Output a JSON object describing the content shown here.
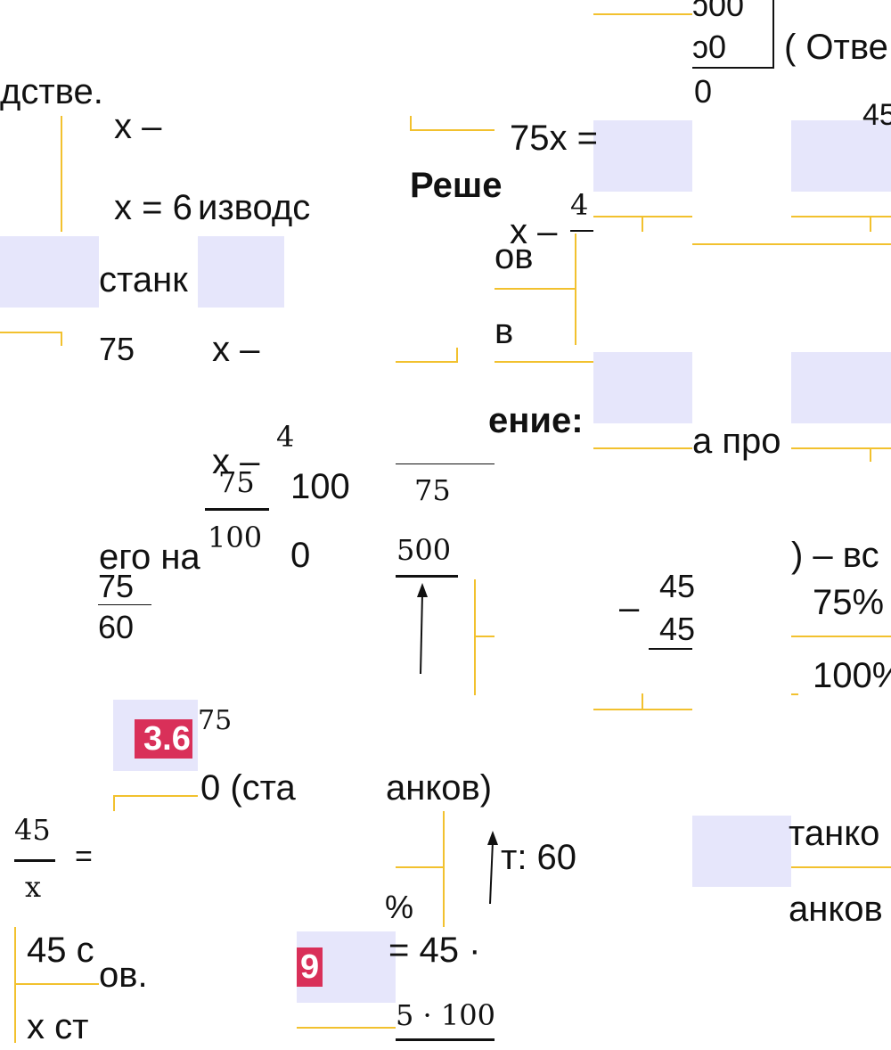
{
  "fragments": [
    {
      "key": "f01",
      "text": "ɔ00"
    },
    {
      "key": "f02",
      "text": "ɔ0"
    },
    {
      "key": "f03",
      "text": "( Отве"
    },
    {
      "key": "f04",
      "text": "дстве."
    },
    {
      "key": "f05",
      "text": "0"
    },
    {
      "key": "f06",
      "text": "x –"
    },
    {
      "key": "f07",
      "text": "75x ="
    },
    {
      "key": "f08",
      "text": "45"
    },
    {
      "key": "f09",
      "text": "Реше"
    },
    {
      "key": "f10",
      "text": "x = 6"
    },
    {
      "key": "f11",
      "text": "изводс"
    },
    {
      "key": "f12",
      "text": "4"
    },
    {
      "key": "f13",
      "text": "x –"
    },
    {
      "key": "f14",
      "text": "ов"
    },
    {
      "key": "f15",
      "text": "станк"
    },
    {
      "key": "f16",
      "text": "в"
    },
    {
      "key": "f17",
      "text": "75"
    },
    {
      "key": "f18",
      "text": "x –"
    },
    {
      "key": "f19",
      "text": "ение:"
    },
    {
      "key": "f20",
      "text": "а про"
    },
    {
      "key": "f21",
      "text": "4"
    },
    {
      "key": "f22",
      "text": "x –"
    },
    {
      "key": "f23",
      "text": "75"
    },
    {
      "key": "f24",
      "text": "100"
    },
    {
      "key": "f25",
      "text": "75"
    },
    {
      "key": "f26",
      "text": "100"
    },
    {
      "key": "f27",
      "text": "его на"
    },
    {
      "key": "f28",
      "text": "0"
    },
    {
      "key": "f29",
      "text": "500"
    },
    {
      "key": "f30",
      "text": ") – вс"
    },
    {
      "key": "f31",
      "text": "75"
    },
    {
      "key": "f32",
      "text": "60"
    },
    {
      "key": "f33",
      "text": "45"
    },
    {
      "key": "f34",
      "text": "–"
    },
    {
      "key": "f35",
      "text": "45"
    },
    {
      "key": "f36",
      "text": "75%"
    },
    {
      "key": "f37",
      "text": "100%"
    },
    {
      "key": "f38",
      "text": "75"
    },
    {
      "key": "f39",
      "text": "0 (ста"
    },
    {
      "key": "f40",
      "text": "анков)"
    },
    {
      "key": "f41",
      "text": "танко"
    },
    {
      "key": "f42",
      "text": "45"
    },
    {
      "key": "f43",
      "text": "x"
    },
    {
      "key": "f44",
      "text": "="
    },
    {
      "key": "f45",
      "text": "т: 60"
    },
    {
      "key": "f46",
      "text": "%"
    },
    {
      "key": "f47",
      "text": "анков"
    },
    {
      "key": "f48",
      "text": "45 с"
    },
    {
      "key": "f49",
      "text": "ов."
    },
    {
      "key": "f50",
      "text": "= 45 ·"
    },
    {
      "key": "f51",
      "text": "x ст"
    },
    {
      "key": "f52",
      "text": "5 · 100"
    }
  ],
  "badges": [
    {
      "key": "b1",
      "text": "3.6"
    },
    {
      "key": "b2",
      "text": "9"
    }
  ],
  "colors": {
    "tile": "#e6e6fb",
    "line": "#f2c12e",
    "badge": "#d93059"
  }
}
